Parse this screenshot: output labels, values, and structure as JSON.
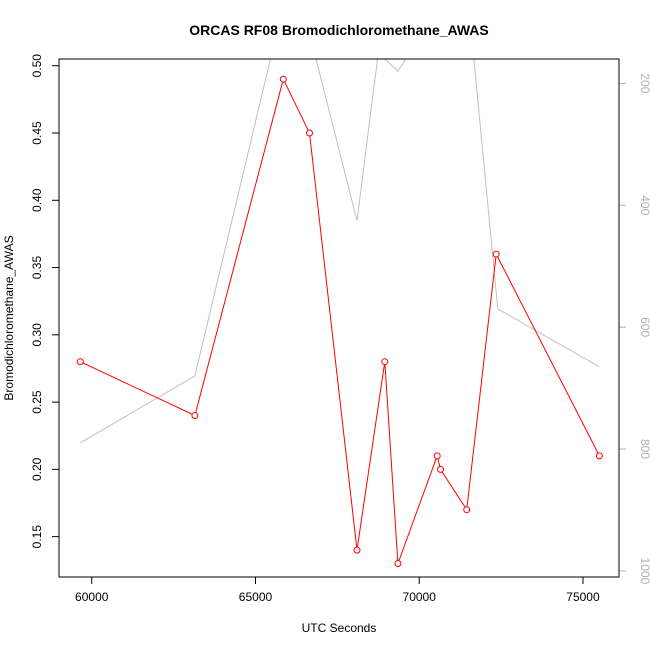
{
  "chart_data": {
    "type": "line",
    "title": "ORCAS RF08 Bromodichloromethane_AWAS",
    "xlabel": "UTC Seconds",
    "ylabel": "Bromodichloromethane_AWAS",
    "xlim": [
      59000,
      76100
    ],
    "ylim": [
      0.12,
      0.505
    ],
    "y2lim": [
      1010,
      160
    ],
    "x_ticks": [
      60000,
      65000,
      70000,
      75000
    ],
    "y_ticks": [
      0.15,
      0.2,
      0.25,
      0.3,
      0.35,
      0.4,
      0.45,
      0.5
    ],
    "y2_ticks": [
      200,
      400,
      600,
      800,
      1000
    ],
    "grid": false,
    "series": [
      {
        "axis": "left",
        "color": "#ff0000",
        "markers": "open-circle",
        "points": [
          {
            "x": 59650,
            "y": 0.28
          },
          {
            "x": 63150,
            "y": 0.24
          },
          {
            "x": 65850,
            "y": 0.49
          },
          {
            "x": 66650,
            "y": 0.45
          },
          {
            "x": 68100,
            "y": 0.14
          },
          {
            "x": 68950,
            "y": 0.28
          },
          {
            "x": 69350,
            "y": 0.13
          },
          {
            "x": 70550,
            "y": 0.21
          },
          {
            "x": 70650,
            "y": 0.2
          },
          {
            "x": 71450,
            "y": 0.17
          },
          {
            "x": 72350,
            "y": 0.36
          },
          {
            "x": 75500,
            "y": 0.21
          }
        ]
      },
      {
        "axis": "right",
        "color": "#c0c0c0",
        "markers": "none",
        "points": [
          {
            "x": 59650,
            "y": 790
          },
          {
            "x": 63150,
            "y": 680
          },
          {
            "x": 65500,
            "y": 150
          },
          {
            "x": 66800,
            "y": 150
          },
          {
            "x": 68100,
            "y": 425
          },
          {
            "x": 68750,
            "y": 150
          },
          {
            "x": 69350,
            "y": 180
          },
          {
            "x": 69700,
            "y": 150
          },
          {
            "x": 71650,
            "y": 150
          },
          {
            "x": 72400,
            "y": 570
          },
          {
            "x": 75500,
            "y": 665
          }
        ]
      }
    ]
  }
}
